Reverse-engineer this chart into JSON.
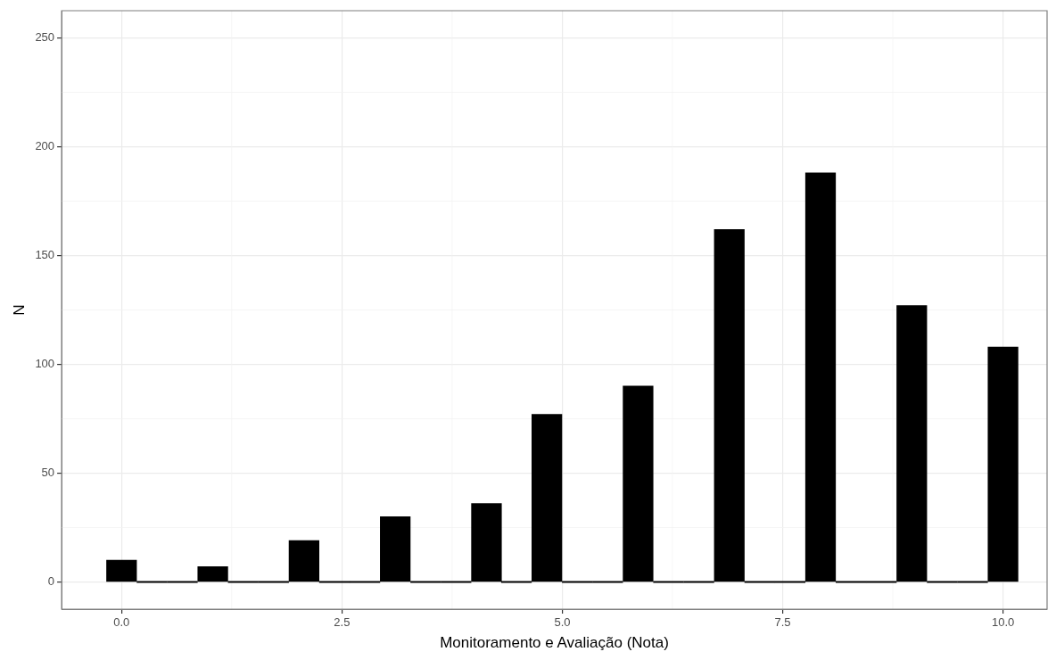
{
  "chart_data": {
    "type": "histogram",
    "xlabel": "Monitoramento e Avaliação (Nota)",
    "ylabel": "N",
    "bins": [
      -0.17,
      0.17,
      0.52,
      0.86,
      1.21,
      1.55,
      1.9,
      2.24,
      2.59,
      2.93,
      3.28,
      3.62,
      3.97,
      4.31,
      4.65,
      5.0,
      5.34,
      5.69,
      6.03,
      6.38,
      6.72,
      7.07,
      7.41,
      7.76,
      8.1,
      8.45,
      8.79,
      9.14,
      9.48,
      9.83,
      10.17
    ],
    "values": [
      10,
      0,
      0,
      7,
      0,
      0,
      19,
      0,
      0,
      30,
      0,
      0,
      36,
      0,
      77,
      0,
      0,
      90,
      0,
      0,
      162,
      0,
      0,
      188,
      0,
      0,
      127,
      0,
      0,
      108
    ],
    "color": "#000000",
    "xlim": [
      -0.68,
      10.5
    ],
    "xticks": [
      {
        "value": 0,
        "label": "0.0"
      },
      {
        "value": 2.5,
        "label": "2.5"
      },
      {
        "value": 5,
        "label": "5.0"
      },
      {
        "value": 7.5,
        "label": "7.5"
      },
      {
        "value": 10,
        "label": "10.0"
      }
    ],
    "ylim": [
      -12.5,
      262.5
    ],
    "yticks": [
      0,
      50,
      100,
      150,
      200,
      250
    ],
    "grid": true,
    "legend": false
  }
}
